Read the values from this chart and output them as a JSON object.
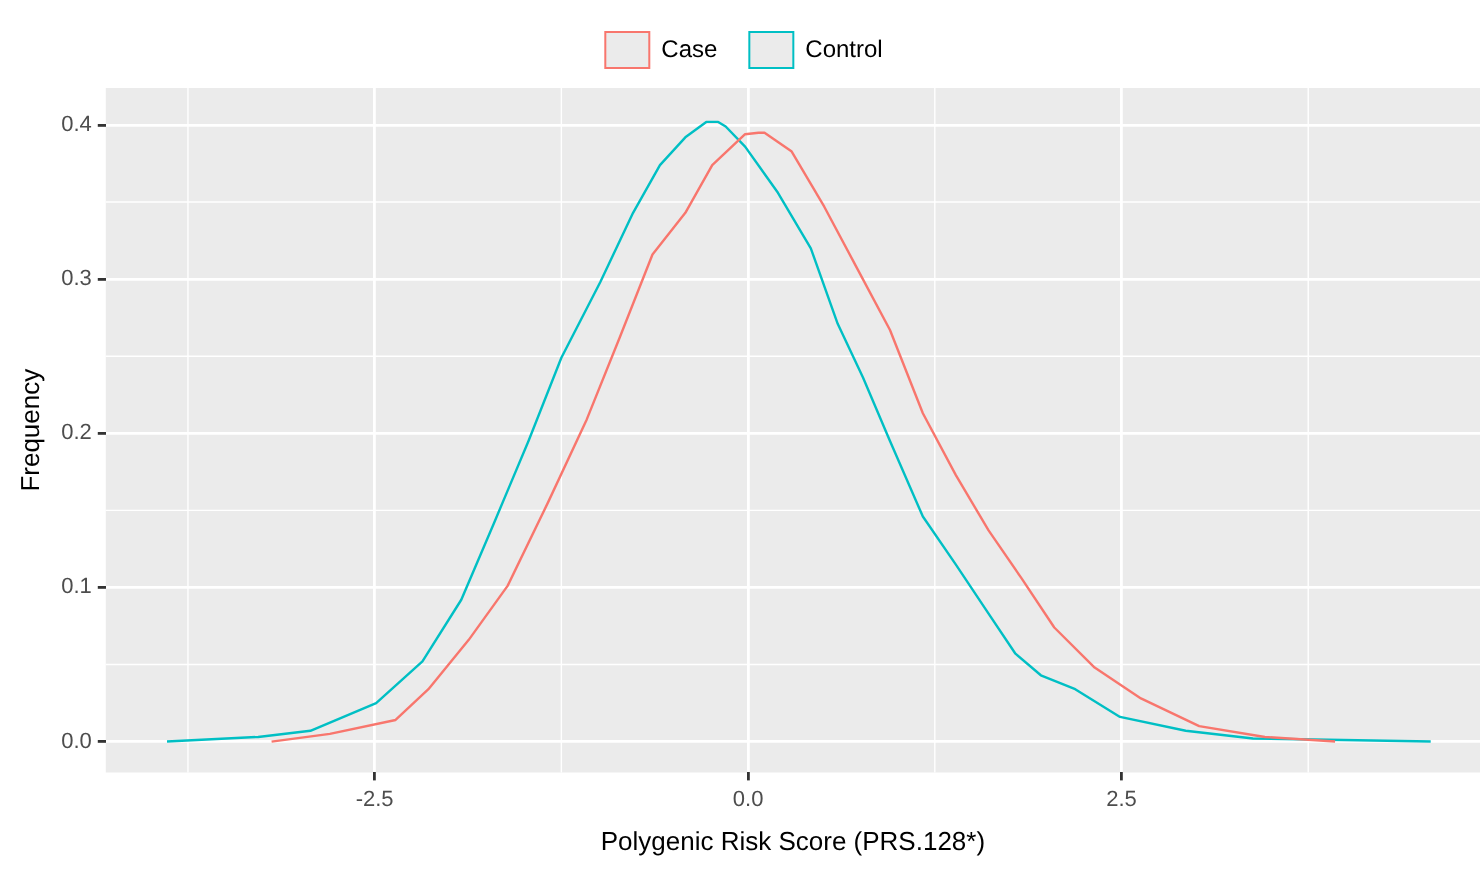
{
  "chart_data": {
    "type": "line",
    "xlabel": "Polygenic Risk Score (PRS.128*)",
    "ylabel": "Frequency",
    "legend": "top",
    "grid": true,
    "xlim": [
      -4.3,
      4.9
    ],
    "ylim": [
      -0.02,
      0.424
    ],
    "xticks": [
      -2.5,
      {
        "value": 0,
        "label": "0.0"
      },
      2.5
    ],
    "yticks": [
      {
        "value": 0,
        "label": "0.0"
      },
      0.1,
      0.2,
      0.3,
      0.4
    ],
    "series": [
      {
        "name": "Case",
        "color": "#f8766d",
        "x": [
          -3.19,
          -2.8,
          -2.36,
          -2.14,
          -1.87,
          -1.61,
          -1.34,
          -1.08,
          -0.86,
          -0.64,
          -0.42,
          -0.24,
          -0.02,
          0.07,
          0.11,
          0.29,
          0.51,
          0.73,
          0.95,
          1.17,
          1.39,
          1.61,
          1.83,
          2.05,
          2.32,
          2.63,
          3.02,
          3.46,
          3.93
        ],
        "values": [
          0,
          0.005,
          0.014,
          0.034,
          0.066,
          0.101,
          0.155,
          0.209,
          0.262,
          0.316,
          0.343,
          0.374,
          0.394,
          0.395,
          0.395,
          0.383,
          0.347,
          0.307,
          0.267,
          0.213,
          0.173,
          0.137,
          0.106,
          0.074,
          0.048,
          0.028,
          0.01,
          0.003,
          0
        ]
      },
      {
        "name": "Control",
        "color": "#00bfc4",
        "x": [
          -3.89,
          -3.28,
          -2.93,
          -2.49,
          -2.18,
          -1.92,
          -1.7,
          -1.47,
          -1.25,
          -0.99,
          -0.77,
          -0.59,
          -0.42,
          -0.28,
          -0.2,
          -0.15,
          -0.02,
          0.2,
          0.42,
          0.6,
          0.77,
          0.95,
          1.17,
          1.39,
          1.61,
          1.79,
          1.96,
          2.19,
          2.49,
          2.93,
          3.38,
          4.57
        ],
        "values": [
          0,
          0.003,
          0.007,
          0.025,
          0.052,
          0.092,
          0.142,
          0.195,
          0.249,
          0.298,
          0.343,
          0.374,
          0.392,
          0.402,
          0.402,
          0.399,
          0.386,
          0.356,
          0.32,
          0.271,
          0.236,
          0.195,
          0.146,
          0.115,
          0.083,
          0.057,
          0.043,
          0.034,
          0.016,
          0.007,
          0.002,
          0
        ]
      }
    ]
  }
}
